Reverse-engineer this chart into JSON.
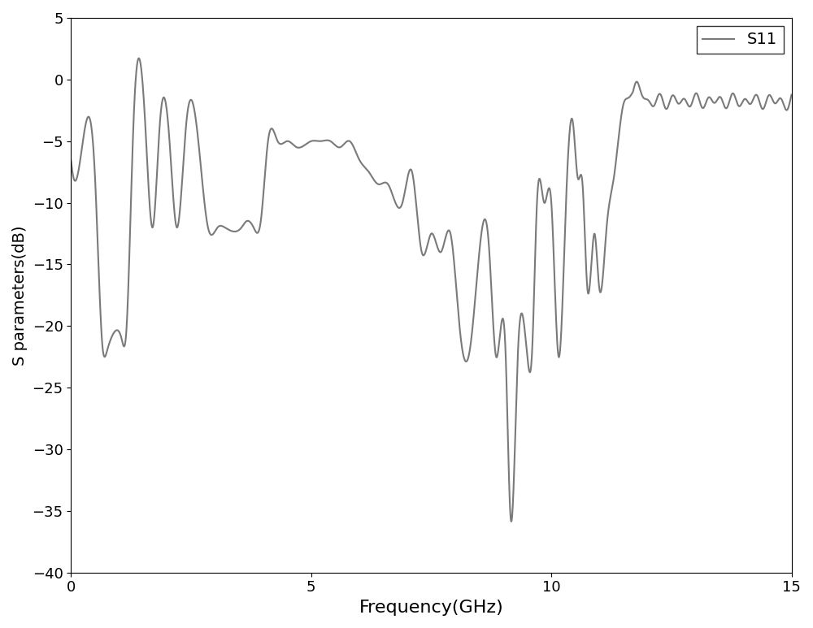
{
  "title": "",
  "xlabel": "Frequency(GHz)",
  "ylabel": "S parameters(dB)",
  "xlim": [
    0,
    15
  ],
  "ylim": [
    -40,
    5
  ],
  "xticks": [
    0,
    5,
    10,
    15
  ],
  "yticks": [
    5,
    0,
    -5,
    -10,
    -15,
    -20,
    -25,
    -30,
    -35,
    -40
  ],
  "line_color": "#7a7a7a",
  "line_width": 1.5,
  "legend_label": "S11",
  "background_color": "#ffffff",
  "xlabel_fontsize": 16,
  "ylabel_fontsize": 14,
  "tick_fontsize": 13,
  "legend_fontsize": 14
}
